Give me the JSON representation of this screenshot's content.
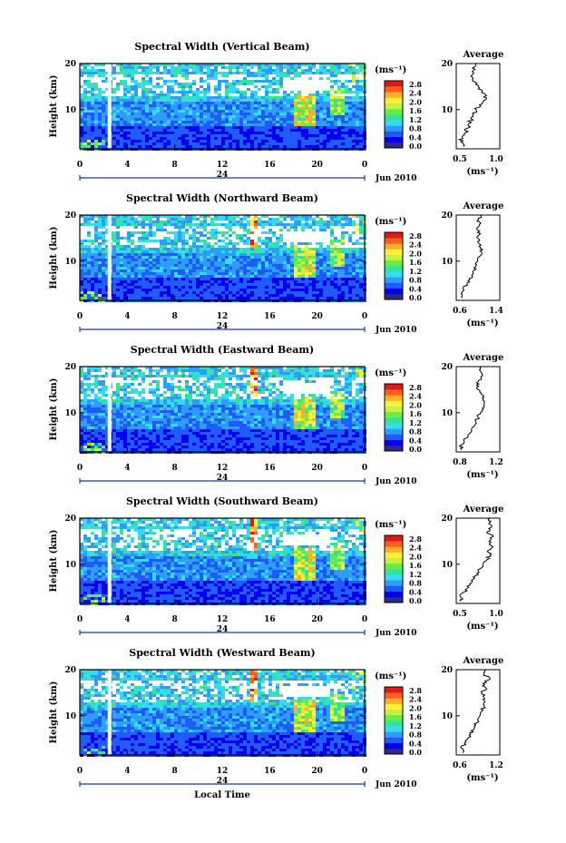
{
  "x_axis_label": "Local Time",
  "date_label": "Jun 2010",
  "day_label": "24",
  "y_axis_label": "Height (km)",
  "x_ticks": [
    "0",
    "4",
    "8",
    "12",
    "16",
    "20",
    "0"
  ],
  "y_ticks": [
    "10",
    "20"
  ],
  "colorbar_unit": "(ms⁻¹)",
  "colorbar_ticks": [
    "0.0",
    "0.4",
    "0.8",
    "1.2",
    "1.6",
    "2.0",
    "2.4",
    "2.8"
  ],
  "colorbar_colors": [
    "#2a2a8a",
    "#0000ee",
    "#1e5cff",
    "#2f9cff",
    "#33ddee",
    "#33e39a",
    "#66ee44",
    "#c8f03c",
    "#fff03c",
    "#ffb028",
    "#ff6020",
    "#e01818"
  ],
  "profile_title": "Average",
  "profile_unit": "(ms⁻¹)",
  "chart_data": [
    {
      "type": "heatmap",
      "title": "Spectral Width (Vertical Beam)",
      "xlabel": "Local Time",
      "ylabel": "Height (km)",
      "xlim": [
        0,
        24
      ],
      "ylim": [
        1.5,
        20
      ],
      "clim": [
        0.0,
        2.8
      ],
      "gap_at_hour": 2.5,
      "enhanced_regions": [
        "18-19 LT, 8-14 km",
        "21-22 LT, 10-15 km"
      ],
      "profile": {
        "title": "Average",
        "xlim": [
          0.5,
          1.25
        ],
        "xticks": [
          "0.5",
          "1.0"
        ],
        "heights": [
          2,
          3,
          4,
          5,
          6,
          7,
          8,
          9,
          10,
          11,
          12,
          13,
          14,
          15,
          16,
          17,
          18,
          19,
          20
        ],
        "values": [
          0.62,
          0.58,
          0.6,
          0.66,
          0.7,
          0.72,
          0.76,
          0.8,
          0.84,
          0.9,
          0.98,
          1.02,
          0.95,
          0.88,
          0.82,
          0.78,
          0.8,
          0.78,
          0.84
        ]
      }
    },
    {
      "type": "heatmap",
      "title": "Spectral Width (Northward Beam)",
      "xlabel": "Local Time",
      "ylabel": "Height (km)",
      "xlim": [
        0,
        24
      ],
      "ylim": [
        1.5,
        20
      ],
      "clim": [
        0.0,
        2.8
      ],
      "gap_at_hour": 2.5,
      "enhanced_regions": [
        "14.5 LT column, 14-20 km",
        "18-19 LT, 8-14 km",
        "21-22 LT, 10-15 km"
      ],
      "profile": {
        "title": "Average",
        "xlim": [
          0.5,
          1.4
        ],
        "xticks": [
          "0.6",
          "1.4"
        ],
        "heights": [
          2,
          3,
          4,
          5,
          6,
          7,
          8,
          9,
          10,
          11,
          12,
          13,
          14,
          15,
          16,
          17,
          18,
          19,
          20
        ],
        "values": [
          0.62,
          0.6,
          0.64,
          0.72,
          0.78,
          0.82,
          0.86,
          0.9,
          0.94,
          0.98,
          1.02,
          1.0,
          0.96,
          0.94,
          1.0,
          0.92,
          0.98,
          0.96,
          1.0
        ]
      }
    },
    {
      "type": "heatmap",
      "title": "Spectral Width (Eastward Beam)",
      "xlabel": "Local Time",
      "ylabel": "Height (km)",
      "xlim": [
        0,
        24
      ],
      "ylim": [
        1.5,
        20
      ],
      "clim": [
        0.0,
        2.8
      ],
      "gap_at_hour": 2.5,
      "enhanced_regions": [
        "14.5 LT column, 14-20 km",
        "18-19 LT, 8-14 km",
        "21-22 LT, 10-15 km"
      ],
      "profile": {
        "title": "Average",
        "xlim": [
          0.5,
          1.4
        ],
        "xticks": [
          "0.8",
          "1.2"
        ],
        "heights": [
          2,
          3,
          4,
          5,
          6,
          7,
          8,
          9,
          10,
          11,
          12,
          13,
          14,
          15,
          16,
          17,
          18,
          19,
          20
        ],
        "values": [
          0.62,
          0.6,
          0.66,
          0.74,
          0.82,
          0.86,
          0.9,
          0.96,
          1.0,
          1.04,
          1.08,
          1.06,
          1.02,
          0.96,
          0.92,
          0.96,
          1.04,
          1.0,
          1.02
        ]
      }
    },
    {
      "type": "heatmap",
      "title": "Spectral Width (Southward Beam)",
      "xlabel": "Local Time",
      "ylabel": "Height (km)",
      "xlim": [
        0,
        24
      ],
      "ylim": [
        1.5,
        20
      ],
      "clim": [
        0.0,
        2.8
      ],
      "gap_at_hour": 2.5,
      "enhanced_regions": [
        "14.5 LT column, 12-20 km",
        "18-19 LT, 8-14 km",
        "21-22 LT, 10-17 km"
      ],
      "profile": {
        "title": "Average",
        "xlim": [
          0.5,
          1.35
        ],
        "xticks": [
          "0.5",
          "1.0"
        ],
        "heights": [
          2,
          3,
          4,
          5,
          6,
          7,
          8,
          9,
          10,
          11,
          12,
          13,
          14,
          15,
          16,
          17,
          18,
          19,
          20
        ],
        "values": [
          0.6,
          0.58,
          0.66,
          0.74,
          0.8,
          0.86,
          0.9,
          0.96,
          1.02,
          1.1,
          1.16,
          1.12,
          1.2,
          1.14,
          1.22,
          1.1,
          1.18,
          1.14,
          1.16
        ]
      }
    },
    {
      "type": "heatmap",
      "title": "Spectral Width (Westward Beam)",
      "xlabel": "Local Time",
      "ylabel": "Height (km)",
      "xlim": [
        0,
        24
      ],
      "ylim": [
        1.5,
        20
      ],
      "clim": [
        0.0,
        2.8
      ],
      "gap_at_hour": 2.5,
      "enhanced_regions": [
        "14.5 LT column, 14-20 km",
        "18-19 LT, 8-14 km",
        "21-22 LT, 10-15 km"
      ],
      "profile": {
        "title": "Average",
        "xlim": [
          0.5,
          1.35
        ],
        "xticks": [
          "0.6",
          "1.2"
        ],
        "heights": [
          2,
          3,
          4,
          5,
          6,
          7,
          8,
          9,
          10,
          11,
          12,
          13,
          14,
          15,
          16,
          17,
          18,
          19,
          20
        ],
        "values": [
          0.62,
          0.6,
          0.66,
          0.72,
          0.78,
          0.84,
          0.88,
          0.92,
          0.96,
          1.0,
          1.04,
          1.06,
          1.04,
          1.0,
          1.08,
          1.02,
          1.16,
          1.04,
          1.08
        ]
      }
    }
  ]
}
